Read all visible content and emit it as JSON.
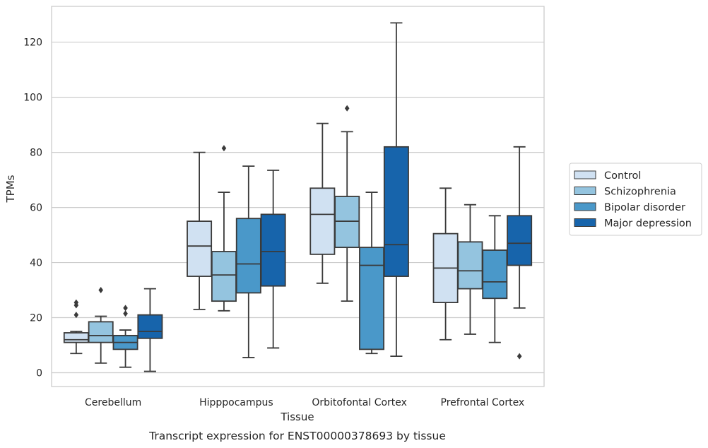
{
  "caption": "Transcript expression for ENST00000378693 by tissue",
  "chart_data": {
    "type": "boxplot",
    "xlabel": "Tissue",
    "ylabel": "TPMs",
    "ylim": [
      -5,
      133
    ],
    "yticks": [
      0,
      20,
      40,
      60,
      80,
      100,
      120
    ],
    "grid": "horizontal",
    "legend_position": "right",
    "categories": [
      "Cerebellum",
      "Hipppocampus",
      "Orbitofontal Cortex",
      "Prefrontal Cortex"
    ],
    "series": [
      {
        "name": "Control",
        "color": "#d0e1f2",
        "boxes": [
          {
            "whislo": 7,
            "q1": 11,
            "med": 12,
            "q3": 14.5,
            "whishi": 15,
            "fliers": [
              21,
              24.5,
              25.5
            ]
          },
          {
            "whislo": 23,
            "q1": 35,
            "med": 46,
            "q3": 55,
            "whishi": 80,
            "fliers": []
          },
          {
            "whislo": 32.5,
            "q1": 43,
            "med": 57.5,
            "q3": 67,
            "whishi": 90.5,
            "fliers": []
          },
          {
            "whislo": 12,
            "q1": 25.5,
            "med": 38,
            "q3": 50.5,
            "whishi": 67,
            "fliers": []
          }
        ]
      },
      {
        "name": "Schizophrenia",
        "color": "#94c4df",
        "boxes": [
          {
            "whislo": 3.5,
            "q1": 11,
            "med": 13.5,
            "q3": 18.5,
            "whishi": 20.5,
            "fliers": [
              30
            ]
          },
          {
            "whislo": 22.5,
            "q1": 26,
            "med": 35.5,
            "q3": 44,
            "whishi": 65.5,
            "fliers": [
              81.5
            ]
          },
          {
            "whislo": 26,
            "q1": 45.5,
            "med": 55,
            "q3": 64,
            "whishi": 87.5,
            "fliers": [
              96
            ]
          },
          {
            "whislo": 14,
            "q1": 30.5,
            "med": 37,
            "q3": 47.5,
            "whishi": 61,
            "fliers": []
          }
        ]
      },
      {
        "name": "Bipolar disorder",
        "color": "#4a98c9",
        "boxes": [
          {
            "whislo": 2,
            "q1": 8.5,
            "med": 11,
            "q3": 13.5,
            "whishi": 15.5,
            "fliers": [
              21.5,
              23.5
            ]
          },
          {
            "whislo": 5.5,
            "q1": 29,
            "med": 39.5,
            "q3": 56,
            "whishi": 75,
            "fliers": []
          },
          {
            "whislo": 7,
            "q1": 8.5,
            "med": 39,
            "q3": 45.5,
            "whishi": 65.5,
            "fliers": []
          },
          {
            "whislo": 11,
            "q1": 27,
            "med": 33,
            "q3": 44.5,
            "whishi": 57,
            "fliers": []
          }
        ]
      },
      {
        "name": "Major depression",
        "color": "#1764ab",
        "boxes": [
          {
            "whislo": 0.5,
            "q1": 12.5,
            "med": 15,
            "q3": 21,
            "whishi": 30.5,
            "fliers": []
          },
          {
            "whislo": 9,
            "q1": 31.5,
            "med": 44,
            "q3": 57.5,
            "whishi": 73.5,
            "fliers": []
          },
          {
            "whislo": 6,
            "q1": 35,
            "med": 46.5,
            "q3": 82,
            "whishi": 127,
            "fliers": []
          },
          {
            "whislo": 23.5,
            "q1": 39,
            "med": 47,
            "q3": 57,
            "whishi": 82,
            "fliers": [
              6
            ]
          }
        ]
      }
    ]
  }
}
